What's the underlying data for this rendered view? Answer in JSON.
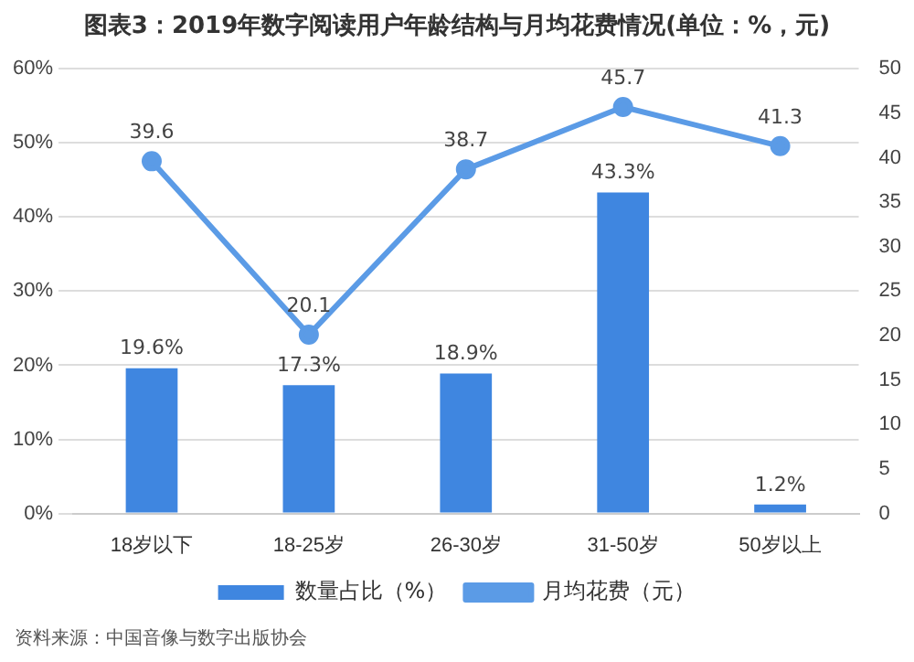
{
  "chart_data": {
    "type": "bar",
    "title": "图表3：2019年数字阅读用户年龄结构与月均花费情况(单位：%，元)",
    "categories": [
      "18岁以下",
      "18-25岁",
      "26-30岁",
      "31-50岁",
      "50岁以上"
    ],
    "series": [
      {
        "name": "数量占比（%）",
        "color": "#3f86e0",
        "values": [
          19.6,
          17.3,
          18.9,
          43.3,
          1.2
        ],
        "value_labels": [
          "19.6%",
          "17.3%",
          "18.9%",
          "43.3%",
          "1.2%"
        ]
      },
      {
        "name": "月均花费（元）",
        "type": "line",
        "axis": "y2",
        "color": "#5b9be6",
        "values": [
          39.6,
          20.1,
          38.7,
          45.7,
          41.3
        ],
        "value_labels": [
          "39.6",
          "20.1",
          "38.7",
          "45.7",
          "41.3"
        ]
      }
    ],
    "ylim": [
      0,
      60
    ],
    "yticks": [
      {
        "value": 0,
        "label": "0%"
      },
      {
        "value": 10,
        "label": "10%"
      },
      {
        "value": 20,
        "label": "20%"
      },
      {
        "value": 30,
        "label": "30%"
      },
      {
        "value": 40,
        "label": "40%"
      },
      {
        "value": 50,
        "label": "50%"
      },
      {
        "value": 60,
        "label": "60%"
      }
    ],
    "y2lim": [
      0,
      50
    ],
    "y2ticks": [
      0,
      5,
      10,
      15,
      20,
      25,
      30,
      35,
      40,
      45,
      50
    ],
    "grid": "y",
    "legend": "bottom",
    "marker": "circle",
    "annotations": [
      "资料来源：中国音像与数字出版协会"
    ]
  }
}
